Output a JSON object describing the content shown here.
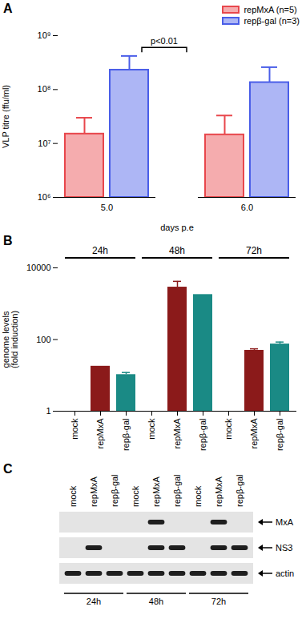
{
  "chart_data": [
    {
      "type": "bar",
      "panel": "A",
      "log": "y",
      "grid": false,
      "legend": "top-right",
      "y_label": "VLP titre (ffu/ml)",
      "x_label": "days p.e",
      "categories": [
        "5.0",
        "6.0"
      ],
      "ylim": [
        1000000,
        1000000000
      ],
      "yticks": [
        {
          "value": 1000000,
          "label": "10⁶"
        },
        {
          "value": 10000000,
          "label": "10⁷"
        },
        {
          "value": 100000000,
          "label": "10⁸"
        },
        {
          "value": 1000000000,
          "label": "10⁹"
        }
      ],
      "series": [
        {
          "name": "repMxA (n=5)",
          "color": "#e8474c",
          "values": [
            15000000,
            14500000
          ],
          "errors": [
            15000000,
            18500000
          ]
        },
        {
          "name": "repβ-gal (n=3)",
          "color": "#4a5ee8",
          "values": [
            230000000,
            135000000
          ],
          "errors": [
            190000000,
            125000000
          ]
        }
      ],
      "annotations": [
        {
          "text": "p<0.01",
          "category": "5.0",
          "between": [
            "repMxA (n=5)",
            "repβ-gal (n=3)"
          ]
        }
      ]
    },
    {
      "type": "bar",
      "panel": "B",
      "log": "y",
      "grid": false,
      "y_label": "genome levels\n(fold induction)",
      "categories": [
        "mock",
        "repMxA",
        "repβ-gal",
        "mock",
        "repMxA",
        "repβ-gal",
        "mock",
        "repMxA",
        "repβ-gal"
      ],
      "groups": [
        "24h",
        "24h",
        "24h",
        "48h",
        "48h",
        "48h",
        "72h",
        "72h",
        "72h"
      ],
      "values": [
        1,
        18,
        10.5,
        1,
        2900,
        1800,
        1,
        50,
        75
      ],
      "errors": [
        null,
        null,
        1.5,
        null,
        1300,
        null,
        null,
        5,
        10
      ],
      "colors": [
        "#8b1a1a",
        "#8b1a1a",
        "#1a8a85",
        "#8b1a1a",
        "#8b1a1a",
        "#1a8a85",
        "#8b1a1a",
        "#8b1a1a",
        "#1a8a85"
      ],
      "ylim": [
        1,
        10000
      ],
      "yticks": [
        1,
        100,
        10000
      ]
    }
  ],
  "panel_c": {
    "label": "C",
    "lanes": [
      "mock",
      "repMxA",
      "repβ-gal",
      "mock",
      "repMxA",
      "repβ-gal",
      "mock",
      "repMxA",
      "repβ-gal"
    ],
    "groups": [
      "24h",
      "24h",
      "24h",
      "48h",
      "48h",
      "48h",
      "72h",
      "72h",
      "72h"
    ],
    "rows": [
      {
        "name": "MxA",
        "bands": [
          false,
          false,
          false,
          false,
          true,
          false,
          false,
          true,
          false
        ]
      },
      {
        "name": "NS3",
        "bands": [
          false,
          true,
          false,
          false,
          true,
          true,
          false,
          true,
          true
        ]
      },
      {
        "name": "actin",
        "bands": [
          true,
          true,
          true,
          true,
          true,
          true,
          true,
          true,
          true
        ]
      }
    ]
  }
}
